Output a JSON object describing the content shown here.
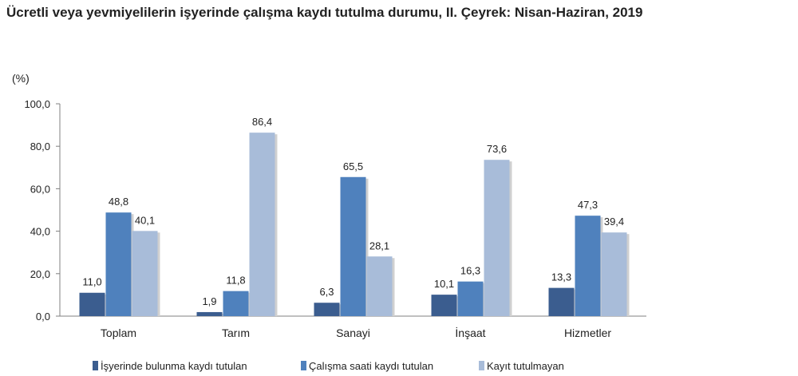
{
  "chart_data": {
    "type": "bar",
    "title": "Ücretli veya yevmiyelilerin işyerinde çalışma kaydı tutulma durumu, II. Çeyrek: Nisan-Haziran, 2019",
    "unit_label": "(%)",
    "categories": [
      "Toplam",
      "Tarım",
      "Sanayi",
      "İnşaat",
      "Hizmetler"
    ],
    "series": [
      {
        "name": "İşyerinde bulunma kaydı tutulan",
        "values": [
          11.0,
          1.9,
          6.3,
          10.1,
          13.3
        ],
        "labels": [
          "11,0",
          "1,9",
          "6,3",
          "10,1",
          "13,3"
        ],
        "color": "#3b5d8f"
      },
      {
        "name": "Çalışma saati kaydı tutulan",
        "values": [
          48.8,
          11.8,
          65.5,
          16.3,
          47.3
        ],
        "labels": [
          "48,8",
          "11,8",
          "65,5",
          "16,3",
          "47,3"
        ],
        "color": "#4f81bd"
      },
      {
        "name": "Kayıt tutulmayan",
        "values": [
          40.1,
          86.4,
          28.1,
          73.6,
          39.4
        ],
        "labels": [
          "40,1",
          "86,4",
          "28,1",
          "73,6",
          "39,4"
        ],
        "color": "#a8bcd9"
      }
    ],
    "ylim": [
      0,
      100
    ],
    "yticks": [
      "0,0",
      "20,0",
      "40,0",
      "60,0",
      "80,0",
      "100,0"
    ],
    "grid": false,
    "legend": "bottom"
  }
}
